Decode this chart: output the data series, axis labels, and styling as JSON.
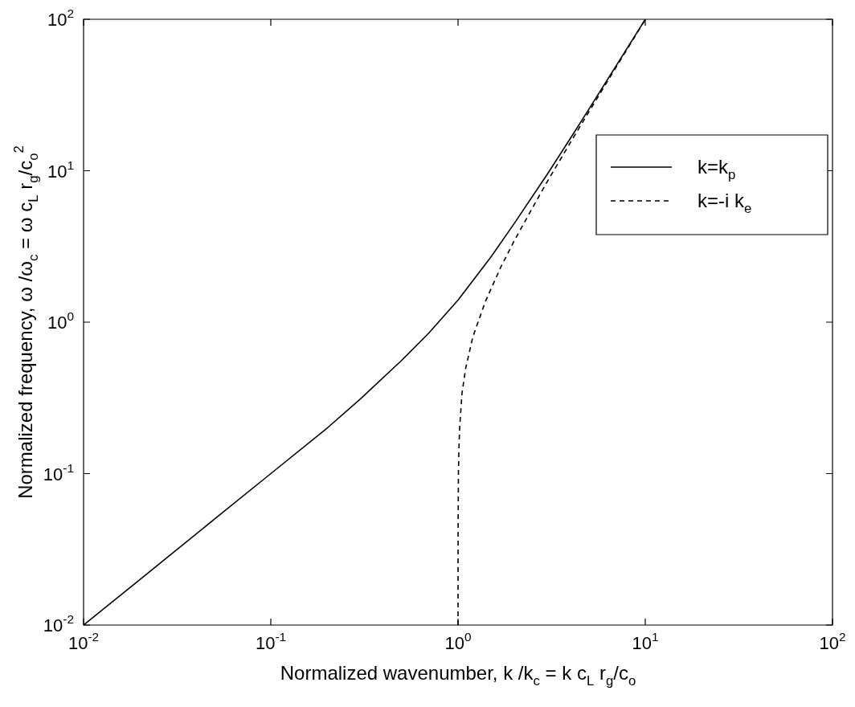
{
  "chart_data": {
    "type": "line",
    "xlabel": "Normalized wavenumber, k /k$_{c}$ = k c$_{L}$ r$_{g}$/c$_{o}$",
    "ylabel": "Normalized frequency, ω /ω$_{c}$ = ω c$_{L}$ r$_{g}$/c$_{o}$$^{2}$",
    "log": "xy",
    "xlim": [
      0.01,
      100
    ],
    "ylim": [
      0.01,
      100
    ],
    "xticks": [
      {
        "value": 0.01,
        "label": "10$^{-2}$"
      },
      {
        "value": 0.1,
        "label": "10$^{-1}$"
      },
      {
        "value": 1,
        "label": "10$^{0}$"
      },
      {
        "value": 10,
        "label": "10$^{1}$"
      },
      {
        "value": 100,
        "label": "10$^{2}$"
      }
    ],
    "yticks": [
      {
        "value": 0.01,
        "label": "10$^{-2}$"
      },
      {
        "value": 0.1,
        "label": "10$^{-1}$"
      },
      {
        "value": 1,
        "label": "10$^{0}$"
      },
      {
        "value": 10,
        "label": "10$^{1}$"
      },
      {
        "value": 100,
        "label": "10$^{2}$"
      }
    ],
    "grid": false,
    "legend": "top right",
    "marker": "none",
    "series": [
      {
        "name": "k=k$_{p}$",
        "color": "#000000",
        "line_style": "solid",
        "x": [
          0.01,
          0.02,
          0.05,
          0.1,
          0.2,
          0.3,
          0.5,
          0.7,
          1,
          1.5,
          2,
          3,
          4,
          5,
          7,
          10
        ],
        "values": [
          0.01,
          0.02,
          0.05,
          0.1,
          0.2,
          0.31,
          0.56,
          0.85,
          1.4,
          2.7,
          4.5,
          9.5,
          16.5,
          25.5,
          49.5,
          100
        ]
      },
      {
        "name": "k=-i k$_{e}$",
        "color": "#000000",
        "line_style": "dashed",
        "x": [
          1,
          1.001,
          1.005,
          1.01,
          1.02,
          1.05,
          1.1,
          1.2,
          1.4,
          1.7,
          2,
          2.5,
          3,
          4,
          5,
          7,
          10
        ],
        "values": [
          0.01,
          0.045,
          0.1,
          0.14,
          0.2,
          0.34,
          0.5,
          0.8,
          1.37,
          2.34,
          3.46,
          5.7,
          8.5,
          15.5,
          24.5,
          48.5,
          99.5
        ]
      }
    ]
  }
}
